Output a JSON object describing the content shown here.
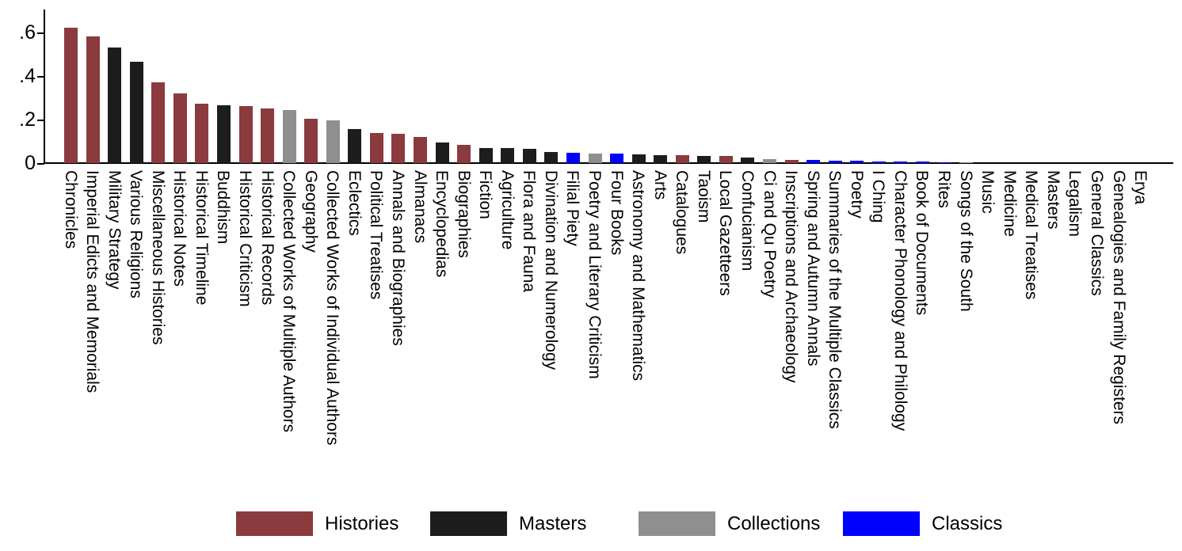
{
  "chart_data": {
    "type": "bar",
    "title": "",
    "xlabel": "",
    "ylabel": "",
    "grid": false,
    "legend_position": "bottom",
    "ylim": [
      0,
      0.71
    ],
    "y_ticks": [
      {
        "value": 0.0,
        "label": "0"
      },
      {
        "value": 0.2,
        "label": ".2"
      },
      {
        "value": 0.4,
        "label": ".4"
      },
      {
        "value": 0.6,
        "label": ".6"
      }
    ],
    "groups": [
      {
        "name": "Histories",
        "color": "#8B3A3E"
      },
      {
        "name": "Masters",
        "color": "#1D1D1D"
      },
      {
        "name": "Collections",
        "color": "#8F8F8F"
      },
      {
        "name": "Classics",
        "color": "#0000FF"
      }
    ],
    "bars": [
      {
        "label": "Chronicles",
        "group": "Histories",
        "value": 0.62
      },
      {
        "label": "Imperial Edicts and Memorials",
        "group": "Histories",
        "value": 0.58
      },
      {
        "label": "Military Strategy",
        "group": "Masters",
        "value": 0.53
      },
      {
        "label": "Various Religions",
        "group": "Masters",
        "value": 0.465
      },
      {
        "label": "Miscellaneous Histories",
        "group": "Histories",
        "value": 0.37
      },
      {
        "label": "Historical Notes",
        "group": "Histories",
        "value": 0.32
      },
      {
        "label": "Historical Timeline",
        "group": "Histories",
        "value": 0.272
      },
      {
        "label": "Buddhism",
        "group": "Masters",
        "value": 0.265
      },
      {
        "label": "Historical Criticism",
        "group": "Histories",
        "value": 0.26
      },
      {
        "label": "Historical Records",
        "group": "Histories",
        "value": 0.252
      },
      {
        "label": "Collected Works of Multiple Authors",
        "group": "Collections",
        "value": 0.245
      },
      {
        "label": "Geography",
        "group": "Histories",
        "value": 0.205
      },
      {
        "label": "Collected Works of Individual Authors",
        "group": "Collections",
        "value": 0.198
      },
      {
        "label": "Eclectics",
        "group": "Masters",
        "value": 0.158
      },
      {
        "label": "Political Treatises",
        "group": "Histories",
        "value": 0.137
      },
      {
        "label": "Annals and Biographies",
        "group": "Histories",
        "value": 0.134
      },
      {
        "label": "Almanacs",
        "group": "Histories",
        "value": 0.12
      },
      {
        "label": "Encyclopedias",
        "group": "Masters",
        "value": 0.095
      },
      {
        "label": "Biographies",
        "group": "Histories",
        "value": 0.085
      },
      {
        "label": "Fiction",
        "group": "Masters",
        "value": 0.07
      },
      {
        "label": "Agriculture",
        "group": "Masters",
        "value": 0.069
      },
      {
        "label": "Flora and Fauna",
        "group": "Masters",
        "value": 0.065
      },
      {
        "label": "Divination and Numerology",
        "group": "Masters",
        "value": 0.052
      },
      {
        "label": "Filial Piety",
        "group": "Classics",
        "value": 0.047
      },
      {
        "label": "Poetry and Literary Criticism",
        "group": "Collections",
        "value": 0.045
      },
      {
        "label": "Four Books",
        "group": "Classics",
        "value": 0.044
      },
      {
        "label": "Astronomy and Mathematics",
        "group": "Masters",
        "value": 0.039
      },
      {
        "label": "Arts",
        "group": "Masters",
        "value": 0.038
      },
      {
        "label": "Catalogues",
        "group": "Histories",
        "value": 0.036
      },
      {
        "label": "Taoism",
        "group": "Masters",
        "value": 0.033
      },
      {
        "label": "Local Gazetteers",
        "group": "Histories",
        "value": 0.031
      },
      {
        "label": "Confucianism",
        "group": "Masters",
        "value": 0.025
      },
      {
        "label": "Ci and Qu Poetry",
        "group": "Collections",
        "value": 0.018
      },
      {
        "label": "Inscriptions and Archaeology",
        "group": "Histories",
        "value": 0.014
      },
      {
        "label": "Spring and Autumn Annals",
        "group": "Classics",
        "value": 0.013
      },
      {
        "label": "Summaries of the Multiple Classics",
        "group": "Classics",
        "value": 0.012
      },
      {
        "label": "Poetry",
        "group": "Classics",
        "value": 0.011
      },
      {
        "label": "I Ching",
        "group": "Classics",
        "value": 0.009
      },
      {
        "label": "Character Phonology and Philology",
        "group": "Classics",
        "value": 0.008
      },
      {
        "label": "Book of Documents",
        "group": "Classics",
        "value": 0.006
      },
      {
        "label": "Rites",
        "group": "Classics",
        "value": 0.005
      },
      {
        "label": "Songs of the South",
        "group": "Collections",
        "value": 0.002
      },
      {
        "label": "Music",
        "group": "Classics",
        "value": 0.001
      },
      {
        "label": "Medicine",
        "group": "Masters",
        "value": 0.001
      },
      {
        "label": "Medical Treatises",
        "group": "Masters",
        "value": 0.001
      },
      {
        "label": "Masters",
        "group": "Masters",
        "value": 0.0005
      },
      {
        "label": "Legalism",
        "group": "Masters",
        "value": 0.0005
      },
      {
        "label": "General Classics",
        "group": "Classics",
        "value": 0.0003
      },
      {
        "label": "Genealogies and Family Registers",
        "group": "Histories",
        "value": 0.0002
      },
      {
        "label": "Erya",
        "group": "Classics",
        "value": 0.0001
      }
    ],
    "legend": [
      {
        "label": "Histories",
        "color": "#8B3A3E"
      },
      {
        "label": "Masters",
        "color": "#1D1D1D"
      },
      {
        "label": "Collections",
        "color": "#8F8F8F"
      },
      {
        "label": "Classics",
        "color": "#0000FF"
      }
    ]
  }
}
